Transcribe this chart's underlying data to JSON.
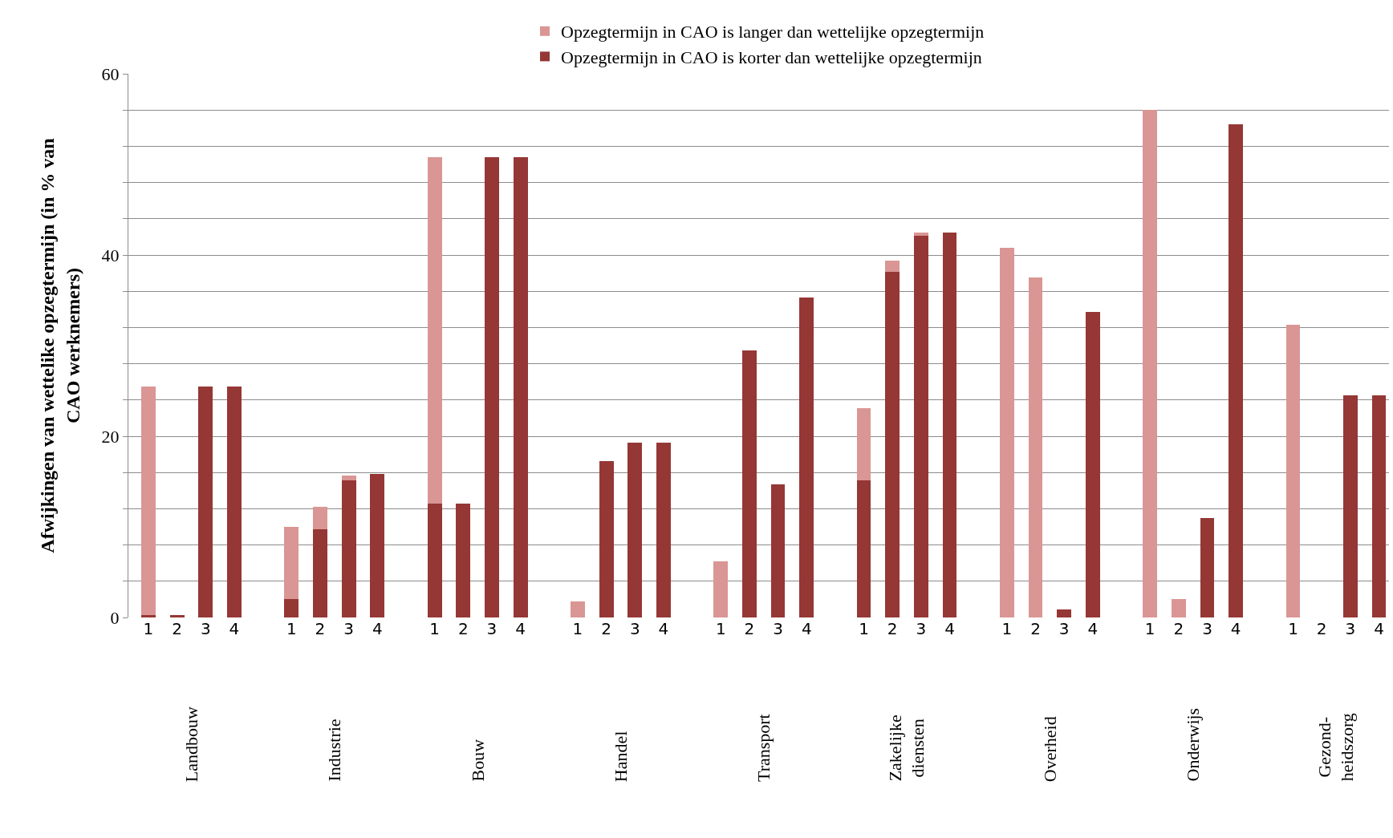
{
  "chart_data": {
    "type": "bar",
    "stacked": true,
    "ylabel": "Afwijkingen van wettelike opzegtermijn (in % van\nCAO werknemers)",
    "categories": [
      "1",
      "2",
      "3",
      "4",
      null,
      "1",
      "2",
      "3",
      "4",
      null,
      "1",
      "2",
      "3",
      "4",
      null,
      "1",
      "2",
      "3",
      "4",
      null,
      "1",
      "2",
      "3",
      "4",
      null,
      "1",
      "2",
      "3",
      "4",
      null,
      "1",
      "2",
      "3",
      "4",
      null,
      "1",
      "2",
      "3",
      "4",
      null,
      "1",
      "2",
      "3",
      "4"
    ],
    "series": [
      {
        "name": "Opzegtermijn in CAO is korter dan wettelijke opzegtermijn",
        "color": "#953735",
        "values": [
          0.3,
          0.3,
          25.5,
          25.5,
          null,
          2.0,
          9.7,
          15.1,
          15.8,
          null,
          12.6,
          12.6,
          50.8,
          50.8,
          null,
          null,
          17.3,
          19.3,
          19.3,
          null,
          null,
          29.5,
          14.7,
          35.3,
          null,
          15.1,
          38.1,
          42.1,
          42.5,
          null,
          null,
          null,
          0.9,
          33.7,
          null,
          null,
          null,
          11.0,
          54.4,
          null,
          null,
          null,
          24.5,
          24.5
        ]
      },
      {
        "name": "Opzegtermijn in CAO is langer dan wettelijke opzegtermijn",
        "color": "#d99694",
        "values": [
          25.2,
          null,
          null,
          null,
          null,
          8.0,
          2.5,
          0.6,
          null,
          null,
          38.2,
          null,
          null,
          null,
          null,
          1.8,
          null,
          null,
          null,
          null,
          6.2,
          null,
          null,
          null,
          null,
          8.0,
          1.3,
          0.4,
          null,
          null,
          40.8,
          37.5,
          null,
          null,
          null,
          56.0,
          2.0,
          null,
          null,
          null,
          32.3,
          null,
          null,
          null
        ]
      }
    ],
    "annotations": [
      "Landbouw",
      "Industrie",
      "Bouw",
      "Handel",
      "Transport",
      "Zakelijke\ndiensten",
      "Overheid",
      "Onderwijs",
      "Gezond-\nheidszorg"
    ],
    "ylim": [
      0,
      60
    ],
    "yticks": [
      0,
      {
        "value": 4,
        "label": null
      },
      {
        "value": 8,
        "label": null
      },
      {
        "value": 12,
        "label": null
      },
      {
        "value": 16,
        "label": null
      },
      20,
      {
        "value": 24,
        "label": null
      },
      {
        "value": 28,
        "label": null
      },
      {
        "value": 32,
        "label": null
      },
      {
        "value": 36,
        "label": null
      },
      40,
      {
        "value": 44,
        "label": null
      },
      {
        "value": 48,
        "label": null
      },
      {
        "value": 52,
        "label": null
      },
      {
        "value": 56,
        "label": null
      },
      60
    ],
    "grid": "y",
    "legend": "top"
  }
}
